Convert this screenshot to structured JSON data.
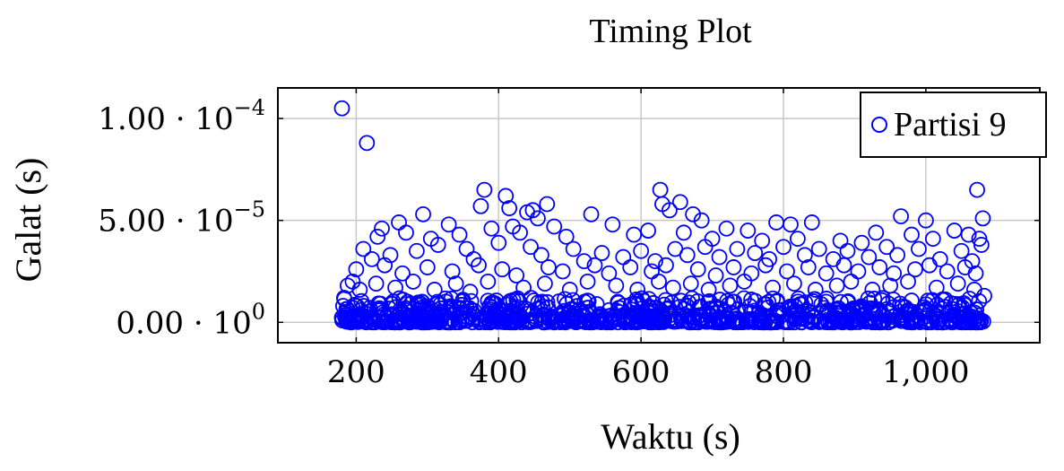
{
  "chart_data": {
    "type": "scatter",
    "title": "Timing Plot",
    "xlabel": "Waktu (s)",
    "ylabel": "Galat (s)",
    "xlim": [
      90,
      1160
    ],
    "ylim": [
      -1e-05,
      0.000115
    ],
    "x_ticks": [
      {
        "value": 200,
        "label": "200"
      },
      {
        "value": 400,
        "label": "400"
      },
      {
        "value": 600,
        "label": "600"
      },
      {
        "value": 800,
        "label": "800"
      },
      {
        "value": 1000,
        "label": "1,000"
      }
    ],
    "y_ticks": [
      {
        "value": 0,
        "mantissa": "0.00 · 10",
        "exponent": "0"
      },
      {
        "value": 5e-05,
        "mantissa": "5.00 · 10",
        "exponent": "−5"
      },
      {
        "value": 0.0001,
        "mantissa": "1.00 · 10",
        "exponent": "−4"
      }
    ],
    "grid": true,
    "legend_position": "top-right",
    "series": [
      {
        "name": "Partisi 9",
        "color": "#0000ff",
        "marker": "open-circle",
        "points": [
          [
            180,
            0.000105
          ],
          [
            215,
            8.8e-05
          ],
          [
            380,
            6.5e-05
          ],
          [
            410,
            6.2e-05
          ],
          [
            627,
            6.5e-05
          ],
          [
            1072,
            6.5e-05
          ],
          [
            468,
            5.8e-05
          ],
          [
            375,
            5.7e-05
          ],
          [
            630,
            5.8e-05
          ],
          [
            655,
            5.9e-05
          ],
          [
            415,
            5.6e-05
          ],
          [
            294,
            5.3e-05
          ],
          [
            530,
            5.3e-05
          ],
          [
            440,
            5.4e-05
          ],
          [
            448,
            5.5e-05
          ],
          [
            455,
            5.1e-05
          ],
          [
            640,
            5.5e-05
          ],
          [
            673,
            5.3e-05
          ],
          [
            685,
            5e-05
          ],
          [
            965,
            5.2e-05
          ],
          [
            1000,
            5e-05
          ],
          [
            1080,
            5.1e-05
          ],
          [
            560,
            4.8e-05
          ],
          [
            790,
            4.9e-05
          ],
          [
            810,
            4.8e-05
          ],
          [
            840,
            4.9e-05
          ],
          [
            260,
            4.9e-05
          ],
          [
            236,
            4.6e-05
          ],
          [
            330,
            4.8e-05
          ],
          [
            230,
            4.2e-05
          ],
          [
            270,
            4.4e-05
          ],
          [
            305,
            4.1e-05
          ],
          [
            345,
            4.3e-05
          ],
          [
            390,
            4.6e-05
          ],
          [
            420,
            4.7e-05
          ],
          [
            430,
            4.4e-05
          ],
          [
            478,
            4.7e-05
          ],
          [
            495,
            4.2e-05
          ],
          [
            590,
            4.3e-05
          ],
          [
            610,
            4.5e-05
          ],
          [
            660,
            4.4e-05
          ],
          [
            700,
            4.1e-05
          ],
          [
            720,
            4.6e-05
          ],
          [
            750,
            4.5e-05
          ],
          [
            770,
            4e-05
          ],
          [
            820,
            4.1e-05
          ],
          [
            880,
            4e-05
          ],
          [
            910,
            3.9e-05
          ],
          [
            930,
            4.4e-05
          ],
          [
            980,
            4.3e-05
          ],
          [
            1010,
            4.1e-05
          ],
          [
            1040,
            4.5e-05
          ],
          [
            1060,
            4.3e-05
          ],
          [
            1075,
            4.1e-05
          ],
          [
            210,
            3.6e-05
          ],
          [
            222,
            3.1e-05
          ],
          [
            248,
            3.3e-05
          ],
          [
            285,
            3.5e-05
          ],
          [
            315,
            3.8e-05
          ],
          [
            355,
            3.6e-05
          ],
          [
            365,
            3.1e-05
          ],
          [
            400,
            3.9e-05
          ],
          [
            445,
            3.7e-05
          ],
          [
            460,
            3.3e-05
          ],
          [
            505,
            3.6e-05
          ],
          [
            520,
            3e-05
          ],
          [
            545,
            3.4e-05
          ],
          [
            575,
            3.2e-05
          ],
          [
            600,
            3.5e-05
          ],
          [
            620,
            3e-05
          ],
          [
            648,
            3.6e-05
          ],
          [
            665,
            3.3e-05
          ],
          [
            690,
            3.7e-05
          ],
          [
            710,
            3.2e-05
          ],
          [
            735,
            3.6e-05
          ],
          [
            760,
            3.4e-05
          ],
          [
            780,
            3.1e-05
          ],
          [
            800,
            3.7e-05
          ],
          [
            830,
            3.3e-05
          ],
          [
            850,
            3.6e-05
          ],
          [
            870,
            3.1e-05
          ],
          [
            890,
            3.5e-05
          ],
          [
            920,
            3.2e-05
          ],
          [
            945,
            3.7e-05
          ],
          [
            960,
            3.3e-05
          ],
          [
            990,
            3.6e-05
          ],
          [
            1020,
            3.1e-05
          ],
          [
            1050,
            3.5e-05
          ],
          [
            1065,
            3e-05
          ],
          [
            1078,
            3.8e-05
          ],
          [
            200,
            2.6e-05
          ],
          [
            240,
            2.8e-05
          ],
          [
            265,
            2.4e-05
          ],
          [
            300,
            2.7e-05
          ],
          [
            335,
            2.5e-05
          ],
          [
            372,
            2.8e-05
          ],
          [
            405,
            2.6e-05
          ],
          [
            425,
            2.3e-05
          ],
          [
            470,
            2.7e-05
          ],
          [
            490,
            2.5e-05
          ],
          [
            535,
            2.8e-05
          ],
          [
            555,
            2.4e-05
          ],
          [
            585,
            2.7e-05
          ],
          [
            615,
            2.5e-05
          ],
          [
            635,
            2.8e-05
          ],
          [
            680,
            2.6e-05
          ],
          [
            705,
            2.3e-05
          ],
          [
            730,
            2.7e-05
          ],
          [
            755,
            2.4e-05
          ],
          [
            775,
            2.8e-05
          ],
          [
            805,
            2.5e-05
          ],
          [
            835,
            2.7e-05
          ],
          [
            860,
            2.4e-05
          ],
          [
            885,
            2.8e-05
          ],
          [
            905,
            2.5e-05
          ],
          [
            935,
            2.7e-05
          ],
          [
            955,
            2.4e-05
          ],
          [
            985,
            2.6e-05
          ],
          [
            1005,
            2.8e-05
          ],
          [
            1030,
            2.5e-05
          ],
          [
            1055,
            2.7e-05
          ],
          [
            1070,
            2.4e-05
          ],
          [
            183,
            1.2e-05
          ],
          [
            188,
            1.8e-05
          ],
          [
            195,
            2e-05
          ],
          [
            205,
            1.6e-05
          ],
          [
            228,
            1.9e-05
          ],
          [
            255,
            1.7e-05
          ],
          [
            280,
            2e-05
          ],
          [
            310,
            1.6e-05
          ],
          [
            340,
            1.9e-05
          ],
          [
            360,
            1.5e-05
          ],
          [
            385,
            2e-05
          ],
          [
            435,
            1.7e-05
          ],
          [
            465,
            1.9e-05
          ],
          [
            500,
            1.6e-05
          ],
          [
            525,
            2e-05
          ],
          [
            565,
            1.8e-05
          ],
          [
            595,
            1.6e-05
          ],
          [
            625,
            2e-05
          ],
          [
            645,
            1.7e-05
          ],
          [
            670,
            1.9e-05
          ],
          [
            695,
            1.6e-05
          ],
          [
            725,
            1.8e-05
          ],
          [
            745,
            2e-05
          ],
          [
            785,
            1.7e-05
          ],
          [
            815,
            1.9e-05
          ],
          [
            845,
            1.6e-05
          ],
          [
            875,
            1.8e-05
          ],
          [
            895,
            2e-05
          ],
          [
            925,
            1.6e-05
          ],
          [
            950,
            1.8e-05
          ],
          [
            975,
            2e-05
          ],
          [
            1015,
            1.7e-05
          ],
          [
            1045,
            1.9e-05
          ],
          [
            1068,
            1.6e-05
          ],
          [
            1082,
            1.3e-05
          ]
        ],
        "dense_band": {
          "x_range": [
            180,
            1082
          ],
          "y_range": [
            0,
            1.2e-05
          ],
          "count": 900
        }
      }
    ]
  }
}
